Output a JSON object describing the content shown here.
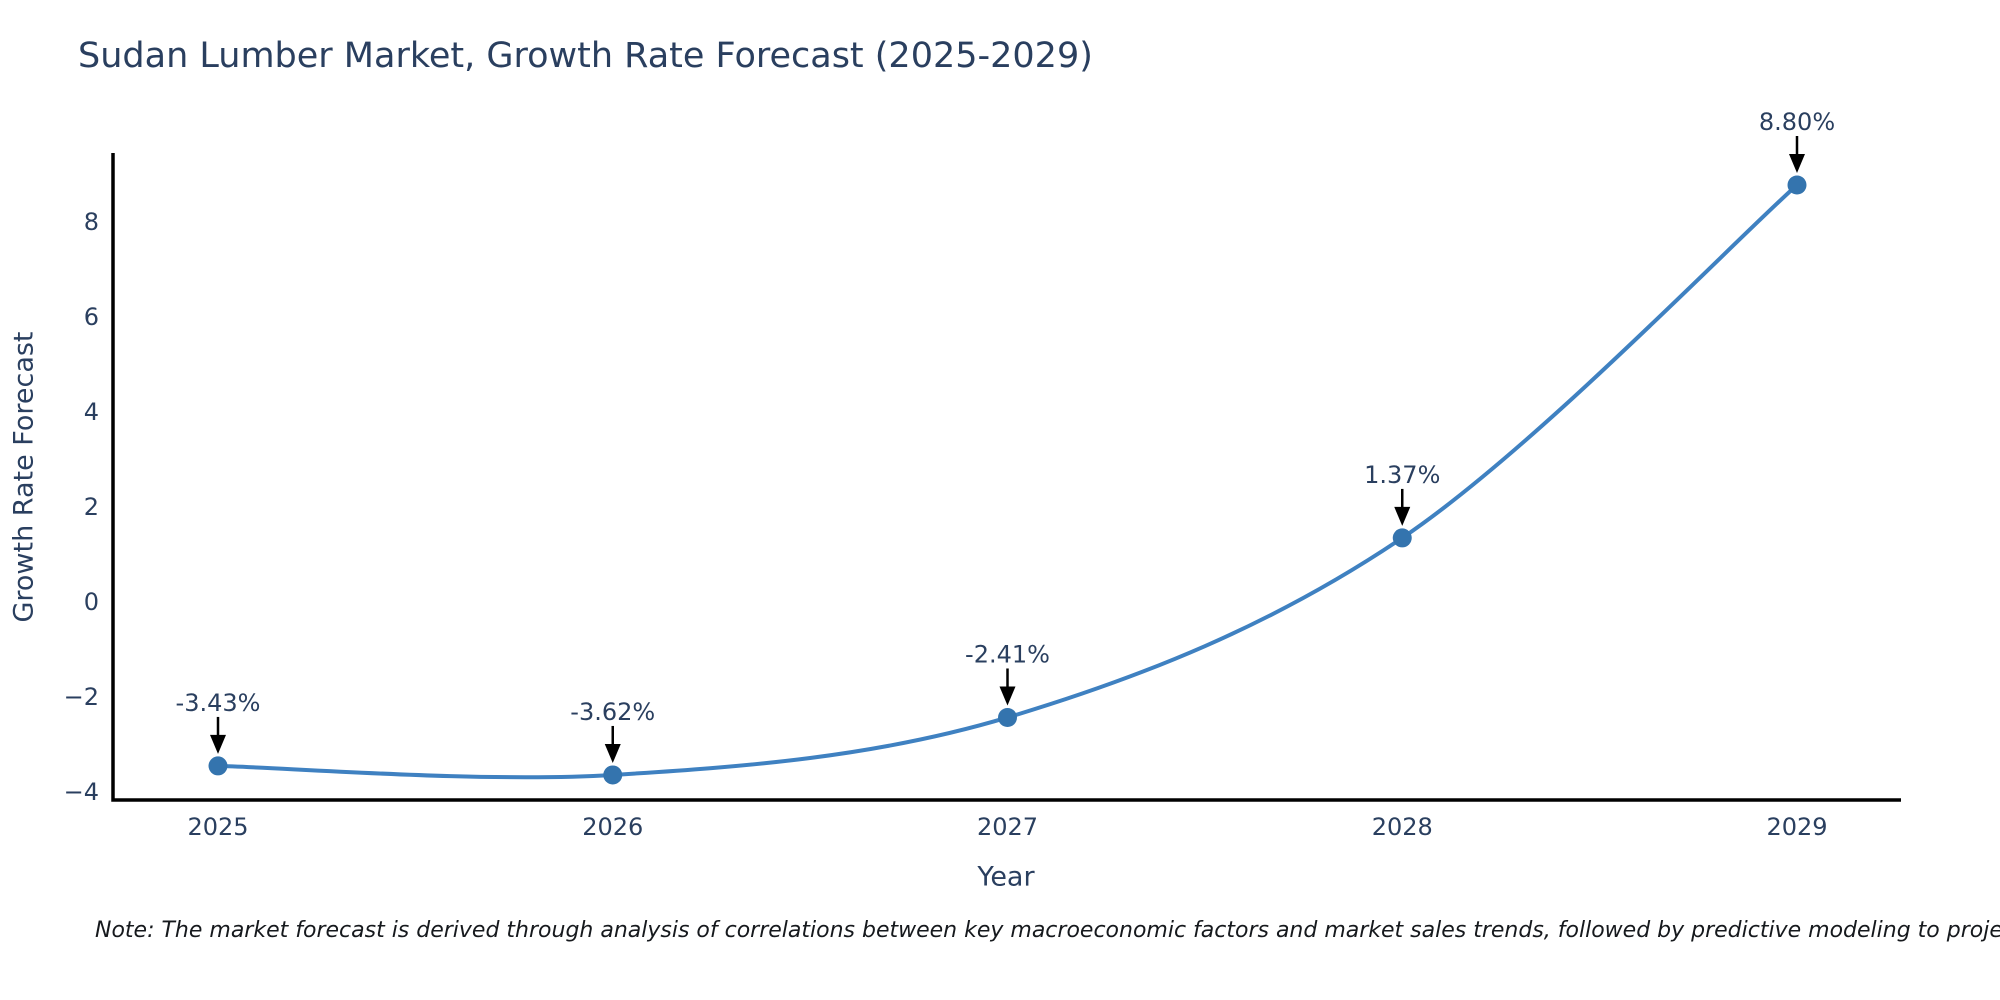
{
  "chart_data": {
    "type": "line",
    "line_shape": "spline",
    "title": "Sudan Lumber Market, Growth Rate Forecast (2025-2029)",
    "xlabel": "Year",
    "ylabel": "Growth Rate Forecast",
    "categories": [
      "2025",
      "2026",
      "2027",
      "2028",
      "2029"
    ],
    "series": [
      {
        "name": "Growth Rate Forecast",
        "values": [
          -3.43,
          -3.62,
          -2.41,
          1.37,
          8.8
        ],
        "point_labels": [
          "-3.43%",
          "-3.62%",
          "-2.41%",
          "1.37%",
          "8.80%"
        ]
      }
    ],
    "yticks": [
      {
        "value": -4,
        "label": "−4"
      },
      {
        "value": -2,
        "label": "−2"
      },
      {
        "value": 0,
        "label": "0"
      },
      {
        "value": 2,
        "label": "2"
      },
      {
        "value": 4,
        "label": "4"
      },
      {
        "value": 6,
        "label": "6"
      },
      {
        "value": 8,
        "label": "8"
      }
    ],
    "ylim": [
      -4.2,
      9.6
    ],
    "grid": false,
    "legend_position": "none",
    "annotations_have_arrows": true,
    "colors": {
      "line": "#3f81c1",
      "marker": "#3474ae",
      "axis": "#000000",
      "text": "#2a3f5f",
      "annotation_text": "#2a3f5f",
      "annotation_arrow": "#000000",
      "note_text": "#16191d",
      "background": "#ffffff"
    },
    "note": "Note: The market forecast is derived through analysis of correlations between key macroeconomic factors and market sales trends, followed by predictive modeling to project future sales"
  }
}
